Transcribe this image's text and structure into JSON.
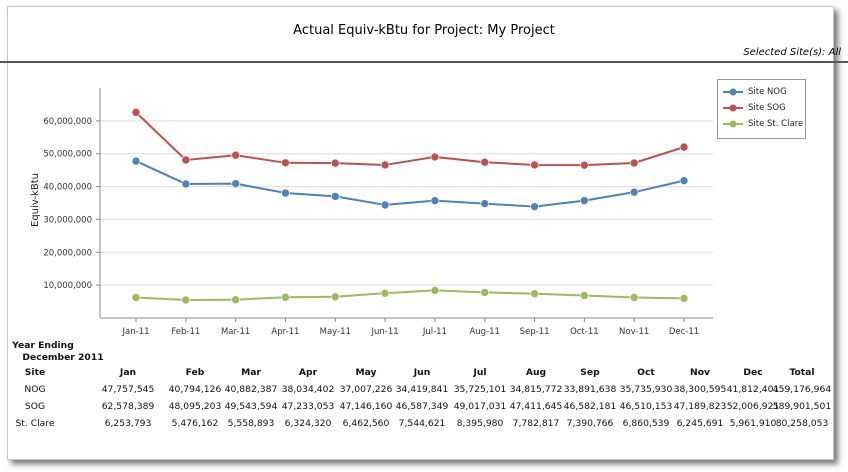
{
  "title": "Actual Equiv-kBtu for Project: My Project",
  "selected_sites": "Selected Site(s): All",
  "colors": {
    "nog": "#4f81bd",
    "sog": "#c0504d",
    "stclare": "#9bbb59",
    "grid": "#dcdcdc",
    "axis": "#888888"
  },
  "chart_data": {
    "type": "line",
    "title": "Actual Equiv-kBtu for Project: My Project",
    "xlabel": "",
    "ylabel": "Equiv-kBtu",
    "categories": [
      "Jan-11",
      "Feb-11",
      "Mar-11",
      "Apr-11",
      "May-11",
      "Jun-11",
      "Jul-11",
      "Aug-11",
      "Sep-11",
      "Oct-11",
      "Nov-11",
      "Dec-11"
    ],
    "ylim": [
      0,
      70000000
    ],
    "yticks": [
      10000000,
      20000000,
      30000000,
      40000000,
      50000000,
      60000000
    ],
    "ytick_labels": [
      "10,000,000",
      "20,000,000",
      "30,000,000",
      "40,000,000",
      "50,000,000",
      "60,000,000"
    ],
    "grid": true,
    "legend": "right",
    "series": [
      {
        "name": "Site NOG",
        "values": [
          47757545,
          40794126,
          40882387,
          38034402,
          37007226,
          34419841,
          35725101,
          34815772,
          33891638,
          35735930,
          38300595,
          41812401
        ]
      },
      {
        "name": "Site SOG",
        "values": [
          62578389,
          48095203,
          49543594,
          47233053,
          47146160,
          46587349,
          49017031,
          47411645,
          46582181,
          46510153,
          47189823,
          52006921
        ]
      },
      {
        "name": "Site St. Clare",
        "values": [
          6253793,
          5476162,
          5558893,
          6324320,
          6462560,
          7544621,
          8395980,
          7782817,
          7390766,
          6860539,
          6245691,
          5961910
        ]
      }
    ]
  },
  "table": {
    "heading_line1": "Year Ending",
    "heading_line2": "December 2011",
    "columns": [
      "Site",
      "Jan",
      "Feb",
      "Mar",
      "Apr",
      "May",
      "Jun",
      "Jul",
      "Aug",
      "Sep",
      "Oct",
      "Nov",
      "Dec",
      "Total"
    ],
    "rows": [
      [
        "NOG",
        "47,757,545",
        "40,794,126",
        "40,882,387",
        "38,034,402",
        "37,007,226",
        "34,419,841",
        "35,725,101",
        "34,815,772",
        "33,891,638",
        "35,735,930",
        "38,300,595",
        "41,812,401",
        "459,176,964"
      ],
      [
        "SOG",
        "62,578,389",
        "48,095,203",
        "49,543,594",
        "47,233,053",
        "47,146,160",
        "46,587,349",
        "49,017,031",
        "47,411,645",
        "46,582,181",
        "46,510,153",
        "47,189,823",
        "52,006,921",
        "589,901,501"
      ],
      [
        "St. Clare",
        "6,253,793",
        "5,476,162",
        "5,558,893",
        "6,324,320",
        "6,462,560",
        "7,544,621",
        "8,395,980",
        "7,782,817",
        "7,390,766",
        "6,860,539",
        "6,245,691",
        "5,961,910",
        "80,258,053"
      ]
    ]
  }
}
